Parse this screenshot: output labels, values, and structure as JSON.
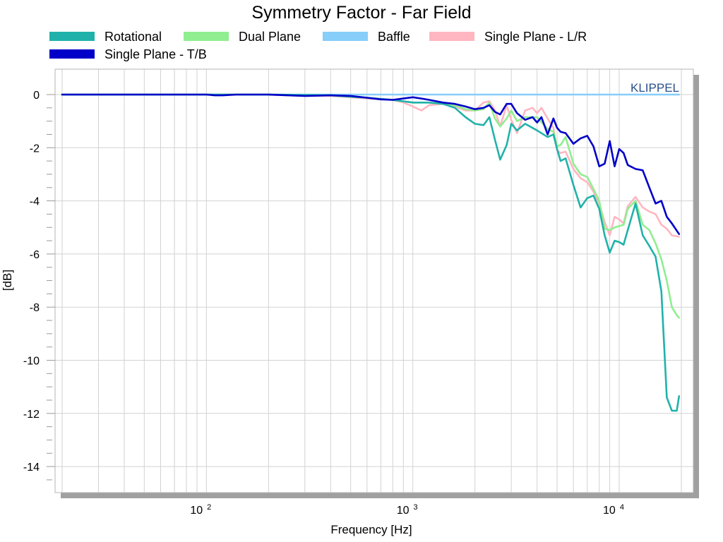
{
  "chart_data": {
    "type": "line",
    "title": "Symmetry Factor - Far Field",
    "xlabel": "Frequency [Hz]",
    "ylabel": "[dB]",
    "x_scale": "log",
    "xlim": [
      20,
      20000
    ],
    "ylim": [
      -15,
      1
    ],
    "x_ticks": [
      {
        "value": 100,
        "base": "10",
        "exp": "2"
      },
      {
        "value": 1000,
        "base": "10",
        "exp": "3"
      },
      {
        "value": 10000,
        "base": "10",
        "exp": "4"
      }
    ],
    "y_ticks": [
      {
        "value": 0,
        "label": "0"
      },
      {
        "value": -2,
        "label": "-2"
      },
      {
        "value": -4,
        "label": "-4"
      },
      {
        "value": -6,
        "label": "-6"
      },
      {
        "value": -8,
        "label": "-8"
      },
      {
        "value": -10,
        "label": "-10"
      },
      {
        "value": -12,
        "label": "-12"
      },
      {
        "value": -14,
        "label": "-14"
      }
    ],
    "grid": true,
    "legend_position": "top",
    "annotation": "KLIPPEL",
    "series": [
      {
        "name": "Rotational",
        "color": "#20b2aa",
        "points": [
          [
            20,
            0
          ],
          [
            100,
            0
          ],
          [
            200,
            0
          ],
          [
            400,
            -0.03
          ],
          [
            600,
            -0.12
          ],
          [
            800,
            -0.2
          ],
          [
            1000,
            -0.3
          ],
          [
            1200,
            -0.3
          ],
          [
            1400,
            -0.35
          ],
          [
            1600,
            -0.5
          ],
          [
            1800,
            -0.85
          ],
          [
            2000,
            -1.1
          ],
          [
            2200,
            -1.15
          ],
          [
            2350,
            -0.85
          ],
          [
            2500,
            -1.7
          ],
          [
            2650,
            -2.45
          ],
          [
            2850,
            -1.9
          ],
          [
            3000,
            -1.1
          ],
          [
            3200,
            -1.35
          ],
          [
            3500,
            -1.1
          ],
          [
            4000,
            -1.35
          ],
          [
            4500,
            -1.6
          ],
          [
            4800,
            -1.5
          ],
          [
            5000,
            -2.05
          ],
          [
            5200,
            -2.5
          ],
          [
            5500,
            -2.4
          ],
          [
            6000,
            -3.4
          ],
          [
            6500,
            -4.25
          ],
          [
            7000,
            -3.9
          ],
          [
            7500,
            -3.8
          ],
          [
            8000,
            -4.3
          ],
          [
            8500,
            -5.3
          ],
          [
            9000,
            -5.95
          ],
          [
            9500,
            -5.5
          ],
          [
            10000,
            -5.55
          ],
          [
            10500,
            -5.65
          ],
          [
            11000,
            -5.1
          ],
          [
            12000,
            -4.1
          ],
          [
            13000,
            -5.3
          ],
          [
            14000,
            -5.7
          ],
          [
            15000,
            -6.1
          ],
          [
            16000,
            -7.4
          ],
          [
            17000,
            -11.4
          ],
          [
            18000,
            -11.9
          ],
          [
            19000,
            -11.9
          ],
          [
            19500,
            -11.35
          ]
        ]
      },
      {
        "name": "Dual Plane",
        "color": "#90ee90",
        "points": [
          [
            20,
            0
          ],
          [
            100,
            0
          ],
          [
            200,
            0
          ],
          [
            400,
            -0.03
          ],
          [
            600,
            -0.12
          ],
          [
            800,
            -0.2
          ],
          [
            1000,
            -0.3
          ],
          [
            1200,
            -0.3
          ],
          [
            1400,
            -0.35
          ],
          [
            1600,
            -0.4
          ],
          [
            1800,
            -0.55
          ],
          [
            2000,
            -0.6
          ],
          [
            2200,
            -0.55
          ],
          [
            2350,
            -0.3
          ],
          [
            2500,
            -0.9
          ],
          [
            2650,
            -1.2
          ],
          [
            2850,
            -0.9
          ],
          [
            3000,
            -0.6
          ],
          [
            3200,
            -1.0
          ],
          [
            3500,
            -0.85
          ],
          [
            4000,
            -0.85
          ],
          [
            4500,
            -1.3
          ],
          [
            4800,
            -1.4
          ],
          [
            5000,
            -1.95
          ],
          [
            5200,
            -1.9
          ],
          [
            5500,
            -1.6
          ],
          [
            6000,
            -2.6
          ],
          [
            6500,
            -3.0
          ],
          [
            7000,
            -3.1
          ],
          [
            7500,
            -3.55
          ],
          [
            8000,
            -4.0
          ],
          [
            8500,
            -5.05
          ],
          [
            9000,
            -5.1
          ],
          [
            9500,
            -5.0
          ],
          [
            10000,
            -4.95
          ],
          [
            10500,
            -4.9
          ],
          [
            11000,
            -4.3
          ],
          [
            12000,
            -4.0
          ],
          [
            13000,
            -4.9
          ],
          [
            14000,
            -5.1
          ],
          [
            15000,
            -5.6
          ],
          [
            16000,
            -6.2
          ],
          [
            17000,
            -7.0
          ],
          [
            18000,
            -8.0
          ],
          [
            19000,
            -8.3
          ],
          [
            19500,
            -8.4
          ]
        ]
      },
      {
        "name": "Baffle",
        "color": "#87cefa",
        "points": [
          [
            20,
            0
          ],
          [
            19500,
            0
          ]
        ]
      },
      {
        "name": "Single Plane - L/R",
        "color": "#ffb6c1",
        "points": [
          [
            20,
            0
          ],
          [
            100,
            0
          ],
          [
            200,
            0
          ],
          [
            300,
            -0.05
          ],
          [
            400,
            -0.05
          ],
          [
            600,
            -0.15
          ],
          [
            800,
            -0.2
          ],
          [
            900,
            -0.3
          ],
          [
            1000,
            -0.45
          ],
          [
            1100,
            -0.6
          ],
          [
            1200,
            -0.4
          ],
          [
            1400,
            -0.35
          ],
          [
            1600,
            -0.45
          ],
          [
            1800,
            -0.6
          ],
          [
            2000,
            -0.6
          ],
          [
            2200,
            -0.3
          ],
          [
            2350,
            -0.25
          ],
          [
            2500,
            -0.6
          ],
          [
            2650,
            -1.2
          ],
          [
            2850,
            -0.4
          ],
          [
            3000,
            -0.95
          ],
          [
            3200,
            -1.45
          ],
          [
            3500,
            -0.6
          ],
          [
            3800,
            -0.5
          ],
          [
            4000,
            -0.7
          ],
          [
            4200,
            -0.5
          ],
          [
            4500,
            -0.9
          ],
          [
            4800,
            -1.25
          ],
          [
            5000,
            -2.1
          ],
          [
            5200,
            -2.2
          ],
          [
            5500,
            -2.15
          ],
          [
            6000,
            -2.8
          ],
          [
            6500,
            -3.15
          ],
          [
            7000,
            -3.3
          ],
          [
            7500,
            -3.65
          ],
          [
            8000,
            -4.1
          ],
          [
            8500,
            -4.8
          ],
          [
            9000,
            -5.3
          ],
          [
            9500,
            -4.6
          ],
          [
            10000,
            -4.7
          ],
          [
            10500,
            -4.85
          ],
          [
            11000,
            -4.2
          ],
          [
            12000,
            -3.85
          ],
          [
            13000,
            -4.25
          ],
          [
            14000,
            -4.4
          ],
          [
            15000,
            -4.5
          ],
          [
            16000,
            -4.9
          ],
          [
            17000,
            -5.05
          ],
          [
            18000,
            -5.3
          ],
          [
            19500,
            -5.35
          ]
        ]
      },
      {
        "name": "Single Plane - T/B",
        "color": "#0000c8",
        "points": [
          [
            20,
            0
          ],
          [
            100,
            0
          ],
          [
            110,
            -0.03
          ],
          [
            120,
            -0.03
          ],
          [
            140,
            0
          ],
          [
            200,
            0
          ],
          [
            300,
            -0.05
          ],
          [
            400,
            -0.03
          ],
          [
            500,
            -0.05
          ],
          [
            600,
            -0.12
          ],
          [
            700,
            -0.18
          ],
          [
            800,
            -0.2
          ],
          [
            900,
            -0.15
          ],
          [
            1000,
            -0.1
          ],
          [
            1100,
            -0.15
          ],
          [
            1200,
            -0.2
          ],
          [
            1400,
            -0.3
          ],
          [
            1600,
            -0.35
          ],
          [
            1800,
            -0.45
          ],
          [
            2000,
            -0.55
          ],
          [
            2200,
            -0.5
          ],
          [
            2350,
            -0.4
          ],
          [
            2500,
            -0.65
          ],
          [
            2650,
            -0.75
          ],
          [
            2850,
            -0.35
          ],
          [
            3000,
            -0.35
          ],
          [
            3200,
            -0.7
          ],
          [
            3500,
            -0.95
          ],
          [
            3800,
            -0.85
          ],
          [
            4000,
            -1.05
          ],
          [
            4200,
            -0.85
          ],
          [
            4500,
            -1.5
          ],
          [
            4800,
            -0.9
          ],
          [
            5000,
            -1.25
          ],
          [
            5200,
            -1.4
          ],
          [
            5500,
            -1.45
          ],
          [
            6000,
            -1.85
          ],
          [
            6500,
            -1.65
          ],
          [
            7000,
            -1.55
          ],
          [
            7500,
            -1.95
          ],
          [
            8000,
            -2.7
          ],
          [
            8500,
            -2.6
          ],
          [
            9000,
            -1.75
          ],
          [
            9500,
            -2.7
          ],
          [
            10000,
            -2.05
          ],
          [
            10500,
            -2.2
          ],
          [
            11000,
            -2.65
          ],
          [
            12000,
            -2.8
          ],
          [
            13000,
            -2.85
          ],
          [
            14000,
            -3.5
          ],
          [
            15000,
            -4.1
          ],
          [
            16000,
            -4.0
          ],
          [
            17000,
            -4.6
          ],
          [
            18000,
            -4.85
          ],
          [
            19500,
            -5.25
          ]
        ]
      }
    ]
  }
}
